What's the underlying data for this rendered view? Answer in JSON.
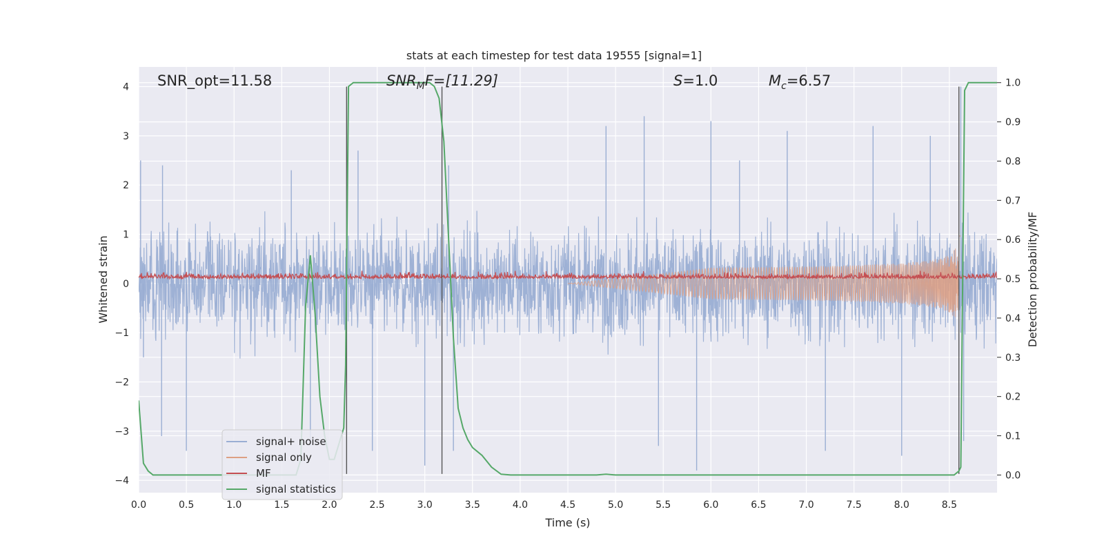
{
  "chart_data": {
    "type": "line",
    "title": "stats at each timestep for test data 19555 [signal=1]",
    "xlabel": "Time (s)",
    "ylabel_left": "Whitened strain",
    "ylabel_right": "Detection probability/MF",
    "xlim": [
      0.0,
      9.0
    ],
    "ylim_left": [
      -4.25,
      4.4
    ],
    "ylim_right": [
      -0.045,
      1.04
    ],
    "x_ticks": [
      "0.0",
      "0.5",
      "1.0",
      "1.5",
      "2.0",
      "2.5",
      "3.0",
      "3.5",
      "4.0",
      "4.5",
      "5.0",
      "5.5",
      "6.0",
      "6.5",
      "7.0",
      "7.5",
      "8.0",
      "8.5"
    ],
    "x_tick_values": [
      0.0,
      0.5,
      1.0,
      1.5,
      2.0,
      2.5,
      3.0,
      3.5,
      4.0,
      4.5,
      5.0,
      5.5,
      6.0,
      6.5,
      7.0,
      7.5,
      8.0,
      8.5
    ],
    "y_left_ticks": [
      "4",
      "3",
      "2",
      "1",
      "0",
      "−1",
      "−2",
      "−3",
      "−4"
    ],
    "y_left_tick_values": [
      4,
      3,
      2,
      1,
      0,
      -1,
      -2,
      -3,
      -4
    ],
    "y_right_ticks": [
      "1.0",
      "0.9",
      "0.8",
      "0.7",
      "0.6",
      "0.5",
      "0.4",
      "0.3",
      "0.2",
      "0.1",
      "0.0"
    ],
    "y_right_tick_values": [
      1.0,
      0.9,
      0.8,
      0.7,
      0.6,
      0.5,
      0.4,
      0.3,
      0.2,
      0.1,
      0.0
    ],
    "grid": true,
    "legend_position": "lower-left",
    "annotations": {
      "snr_opt": "SNR_opt=11.58",
      "snr_mf_sym": "SNR",
      "snr_mf_sub": "M",
      "snr_mf_rest": "F=[11.29]",
      "s_sym": "S",
      "s_rest": "=1.0",
      "mc_sym": "M",
      "mc_sub": "c",
      "mc_rest": "=6.57"
    },
    "vertical_lines_x": [
      2.18,
      3.18,
      8.6
    ],
    "series": [
      {
        "name": "signal+ noise",
        "color": "#9aaed3",
        "axis": "left",
        "description_kind": "noise band",
        "envelope_typical": 2.0,
        "peak_points": [
          {
            "x": 0.02,
            "y": 2.5
          },
          {
            "x": 0.05,
            "y": -1.5
          },
          {
            "x": 0.25,
            "y": 2.4
          },
          {
            "x": 0.24,
            "y": -3.1
          },
          {
            "x": 0.5,
            "y": -3.4
          },
          {
            "x": 1.8,
            "y": -3.3
          },
          {
            "x": 1.6,
            "y": 2.3
          },
          {
            "x": 2.3,
            "y": 2.7
          },
          {
            "x": 2.45,
            "y": -3.4
          },
          {
            "x": 3.0,
            "y": -3.7
          },
          {
            "x": 3.25,
            "y": 2.4
          },
          {
            "x": 3.3,
            "y": -3.4
          },
          {
            "x": 4.9,
            "y": 3.2
          },
          {
            "x": 5.3,
            "y": 3.4
          },
          {
            "x": 5.45,
            "y": -3.3
          },
          {
            "x": 5.85,
            "y": -3.8
          },
          {
            "x": 6.0,
            "y": 3.3
          },
          {
            "x": 6.3,
            "y": 2.5
          },
          {
            "x": 6.8,
            "y": 3.1
          },
          {
            "x": 7.2,
            "y": -3.4
          },
          {
            "x": 7.7,
            "y": 3.2
          },
          {
            "x": 8.0,
            "y": -3.5
          },
          {
            "x": 8.3,
            "y": 3.0
          },
          {
            "x": 8.62,
            "y": 4.0
          },
          {
            "x": 8.65,
            "y": -3.2
          }
        ]
      },
      {
        "name": "signal only",
        "color": "#dd9f83",
        "axis": "left",
        "chirp_start_x": 4.5,
        "chirp_end_x": 8.62,
        "amplitude_at_6": 0.2,
        "amplitude_at_8": 0.3,
        "amplitude_at_8.5": 0.6,
        "amplitude_peak": 1.0
      },
      {
        "name": "MF",
        "color": "#c44e52",
        "axis": "left",
        "baseline": 0.1,
        "spike_max": 0.35
      },
      {
        "name": "signal statistics",
        "color": "#55a868",
        "axis": "right",
        "x": [
          0.0,
          0.05,
          0.1,
          0.15,
          0.2,
          0.3,
          0.5,
          0.8,
          1.0,
          1.2,
          1.4,
          1.6,
          1.65,
          1.7,
          1.75,
          1.8,
          1.85,
          1.9,
          1.95,
          2.0,
          2.05,
          2.1,
          2.15,
          2.17,
          2.2,
          2.25,
          2.3,
          2.5,
          2.8,
          3.0,
          3.05,
          3.1,
          3.15,
          3.2,
          3.25,
          3.3,
          3.35,
          3.4,
          3.45,
          3.5,
          3.55,
          3.6,
          3.7,
          3.8,
          3.9,
          4.0,
          4.5,
          4.8,
          4.9,
          5.0,
          5.5,
          6.0,
          6.5,
          7.0,
          7.5,
          8.0,
          8.4,
          8.55,
          8.6,
          8.62,
          8.64,
          8.66,
          8.7,
          8.8,
          9.0
        ],
        "y": [
          0.19,
          0.03,
          0.01,
          0.0,
          0.0,
          0.0,
          0.0,
          0.0,
          0.0,
          0.0,
          0.0,
          0.0,
          0.0,
          0.04,
          0.43,
          0.56,
          0.41,
          0.2,
          0.1,
          0.04,
          0.04,
          0.08,
          0.12,
          0.28,
          0.99,
          1.0,
          1.0,
          1.0,
          1.0,
          1.0,
          1.0,
          0.99,
          0.96,
          0.85,
          0.6,
          0.35,
          0.17,
          0.12,
          0.09,
          0.07,
          0.06,
          0.05,
          0.02,
          0.002,
          0.0,
          0.0,
          0.0,
          0.0,
          0.002,
          0.0,
          0.0,
          0.0,
          0.0,
          0.0,
          0.0,
          0.0,
          0.0,
          0.0,
          0.01,
          0.02,
          0.5,
          0.98,
          1.0,
          1.0,
          1.0
        ]
      }
    ]
  },
  "legend": [
    {
      "label": "signal+ noise",
      "color": "#9aaed3"
    },
    {
      "label": "signal only",
      "color": "#dd9f83"
    },
    {
      "label": "MF",
      "color": "#c44e52"
    },
    {
      "label": "signal statistics",
      "color": "#55a868"
    }
  ],
  "colors": {
    "axes_bg": "#eaeaf2",
    "grid": "#ffffff",
    "text": "#262626"
  }
}
